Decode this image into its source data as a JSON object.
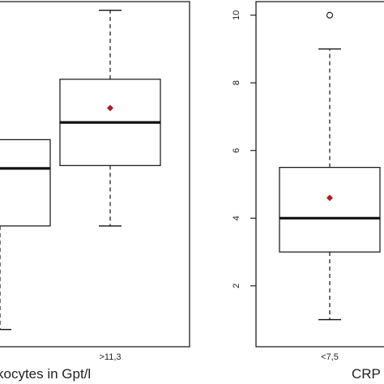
{
  "chart_data": [
    {
      "type": "box",
      "xlabel": "kocytes in Gpt/l",
      "ylabel": "",
      "categories": [
        "",
        ">11,3"
      ],
      "boxes": [
        {
          "whisker_low": 0.6,
          "q1": 4.2,
          "median": 6.2,
          "q3": 7.2,
          "whisker_high": null,
          "mean": null
        },
        {
          "whisker_low": 4.2,
          "q1": 6.3,
          "median": 7.8,
          "q3": 9.3,
          "whisker_high": 11.7,
          "mean": 8.3
        }
      ],
      "ylim": [
        0,
        12
      ]
    },
    {
      "type": "box",
      "xlabel": "CRP",
      "ylabel": "",
      "categories": [
        "<7,5"
      ],
      "yticks": [
        2,
        4,
        6,
        8,
        10
      ],
      "ylim": [
        0.2,
        10.4
      ],
      "boxes": [
        {
          "whisker_low": 1,
          "q1": 3,
          "median": 4,
          "q3": 5.5,
          "whisker_high": 9,
          "mean": 4.6,
          "outliers": [
            10
          ]
        }
      ]
    }
  ],
  "colors": {
    "mean_marker": "#b31b1b",
    "lines": "#111111"
  }
}
